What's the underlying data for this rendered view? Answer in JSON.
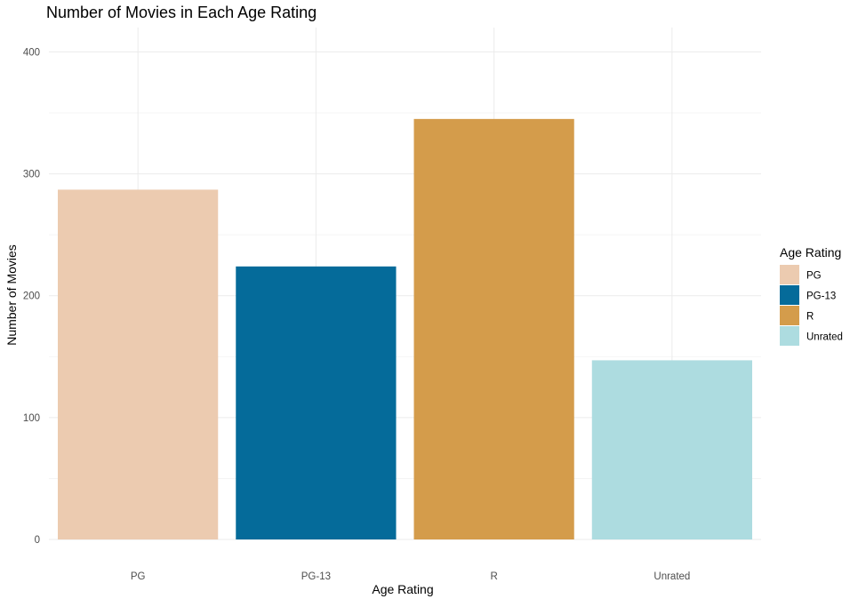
{
  "chart_data": {
    "type": "bar",
    "title": "Number of Movies in Each Age Rating",
    "xlabel": "Age Rating",
    "ylabel": "Number of Movies",
    "categories": [
      "PG",
      "PG-13",
      "R",
      "Unrated"
    ],
    "values": [
      287,
      224,
      345,
      147
    ],
    "colors": [
      "#ECCBB0",
      "#056B9A",
      "#D49C4B",
      "#ADDCE0"
    ],
    "ylim": [
      0,
      420
    ],
    "yticks": [
      0,
      100,
      200,
      300,
      400
    ],
    "ytick_labels": [
      "0",
      "100",
      "200",
      "300",
      "400"
    ],
    "grid": true,
    "legend": {
      "title": "Age Rating",
      "placement": "right",
      "items": [
        "PG",
        "PG-13",
        "R",
        "Unrated"
      ]
    }
  }
}
